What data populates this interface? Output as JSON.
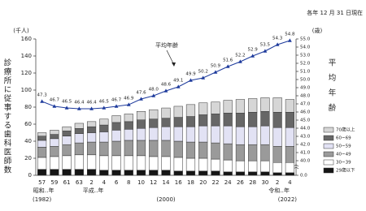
{
  "chart_data": {
    "type": "bar",
    "note": "各年 12 月 31 日現在",
    "y_title": "診療所に従事する歯科医師数",
    "y_unit": "(千人)",
    "y2_title": "平均年齢",
    "y2_unit": "(歳)",
    "annotation": "平均年齢",
    "era_labels": [
      "昭和‥年",
      "平成‥年",
      "令和‥年"
    ],
    "year_labels": [
      "(1982)",
      "(2000)",
      "(2022)"
    ],
    "categories": [
      "57",
      "59",
      "61",
      "63",
      "2",
      "4",
      "6",
      "8",
      "10",
      "12",
      "14",
      "16",
      "18",
      "20",
      "22",
      "24",
      "26",
      "28",
      "30",
      "2",
      "4"
    ],
    "series": [
      {
        "name": "29歳以下",
        "color": "#151515",
        "values": [
          7,
          7,
          7,
          7,
          7,
          6,
          6,
          6,
          6,
          6,
          6,
          5,
          5,
          5,
          5,
          4,
          4,
          4,
          4,
          3,
          3
        ]
      },
      {
        "name": "30~39",
        "color": "#ffffff",
        "values": [
          14,
          15,
          16,
          17,
          17,
          17,
          17,
          17,
          17,
          16,
          16,
          16,
          15,
          15,
          14,
          14,
          13,
          13,
          13,
          12,
          12
        ]
      },
      {
        "name": "40~49",
        "color": "#9a9a9a",
        "values": [
          12,
          12,
          13,
          14,
          15,
          16,
          17,
          18,
          18,
          19,
          19,
          19,
          19,
          19,
          19,
          19,
          19,
          19,
          19,
          19,
          19
        ]
      },
      {
        "name": "50~59",
        "color": "#e2e2f4",
        "values": [
          8,
          9,
          10,
          11,
          11,
          12,
          13,
          13,
          14,
          15,
          16,
          17,
          18,
          19,
          20,
          21,
          21,
          21,
          22,
          22,
          22
        ]
      },
      {
        "name": "60~69",
        "color": "#676767",
        "values": [
          5,
          5,
          6,
          6,
          7,
          8,
          9,
          9,
          10,
          10,
          10,
          11,
          12,
          13,
          14,
          15,
          16,
          17,
          17,
          18,
          18
        ]
      },
      {
        "name": "70歳以上",
        "color": "#d6d6d6",
        "values": [
          4,
          5,
          5,
          6,
          6,
          7,
          8,
          9,
          10,
          11,
          12,
          13,
          14,
          14,
          14,
          15,
          16,
          16,
          16,
          17,
          15
        ]
      },
      {
        "type": "line",
        "axis": "y2",
        "color": "#1d3a9c",
        "values": [
          47.3,
          46.7,
          46.5,
          46.4,
          46.4,
          46.5,
          46.7,
          46.9,
          47.6,
          48.0,
          48.6,
          49.1,
          49.9,
          50.2,
          50.9,
          51.6,
          52.2,
          52.9,
          53.5,
          54.3,
          54.8
        ],
        "value_labels": [
          "47.3",
          "46.7",
          "46.5",
          "46.4",
          "46.4",
          "46.5",
          "46.7",
          "46.9",
          "47.6",
          "48.0",
          "48.6",
          "49.1",
          "49.9",
          "50.2",
          "50.9",
          "51.6",
          "52.2",
          "52.9",
          "53.5",
          "54.3",
          "54.8"
        ]
      }
    ],
    "ylim": [
      0,
      160
    ],
    "yticks": [
      0,
      20,
      40,
      60,
      80,
      100,
      120,
      140,
      160
    ],
    "y2lim": [
      0,
      55
    ],
    "y2_break": [
      0,
      40
    ],
    "y2ticks": [
      {
        "value": 0,
        "label": "0.0"
      },
      {
        "value": 40,
        "label": "40.0"
      },
      {
        "value": 41,
        "label": "41.0"
      },
      {
        "value": 42,
        "label": "42.0"
      },
      {
        "value": 43,
        "label": "43.0"
      },
      {
        "value": 44,
        "label": "44.0"
      },
      {
        "value": 45,
        "label": "45.0"
      },
      {
        "value": 46,
        "label": "46.0"
      },
      {
        "value": 47,
        "label": "47.0"
      },
      {
        "value": 48,
        "label": "48.0"
      },
      {
        "value": 49,
        "label": "49.0"
      },
      {
        "value": 50,
        "label": "50.0"
      },
      {
        "value": 51,
        "label": "51.0"
      },
      {
        "value": 52,
        "label": "52.0"
      },
      {
        "value": 53,
        "label": "53.0"
      },
      {
        "value": 54,
        "label": "54.0"
      },
      {
        "value": 55,
        "label": "55.0"
      }
    ],
    "grid": false,
    "legend": "right"
  }
}
